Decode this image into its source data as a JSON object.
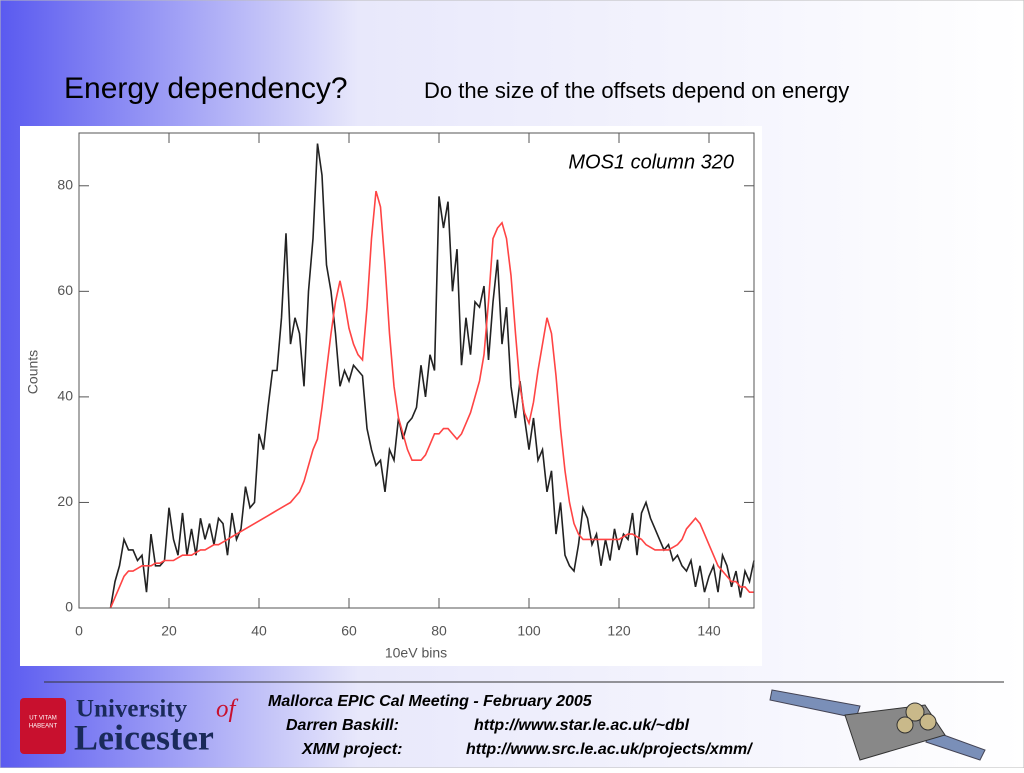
{
  "slide": {
    "title": "Energy dependency?",
    "subtitle": "Do the size of the offsets depend on energy"
  },
  "chart_data": {
    "type": "line",
    "annotation": "MOS1 column 320",
    "xlabel": "10eV bins",
    "ylabel": "Counts",
    "xlim": [
      0,
      150
    ],
    "ylim": [
      0,
      90
    ],
    "xticks": [
      0,
      20,
      40,
      60,
      80,
      100,
      120,
      140
    ],
    "yticks": [
      0,
      20,
      40,
      60,
      80
    ],
    "x": [
      7,
      8,
      9,
      10,
      11,
      12,
      13,
      14,
      15,
      16,
      17,
      18,
      19,
      20,
      21,
      22,
      23,
      24,
      25,
      26,
      27,
      28,
      29,
      30,
      31,
      32,
      33,
      34,
      35,
      36,
      37,
      38,
      39,
      40,
      41,
      42,
      43,
      44,
      45,
      46,
      47,
      48,
      49,
      50,
      51,
      52,
      53,
      54,
      55,
      56,
      57,
      58,
      59,
      60,
      61,
      62,
      63,
      64,
      65,
      66,
      67,
      68,
      69,
      70,
      71,
      72,
      73,
      74,
      75,
      76,
      77,
      78,
      79,
      80,
      81,
      82,
      83,
      84,
      85,
      86,
      87,
      88,
      89,
      90,
      91,
      92,
      93,
      94,
      95,
      96,
      97,
      98,
      99,
      100,
      101,
      102,
      103,
      104,
      105,
      106,
      107,
      108,
      109,
      110,
      111,
      112,
      113,
      114,
      115,
      116,
      117,
      118,
      119,
      120,
      121,
      122,
      123,
      124,
      125,
      126,
      127,
      128,
      129,
      130,
      131,
      132,
      133,
      134,
      135,
      136,
      137,
      138,
      139,
      140,
      141,
      142,
      143,
      144,
      145,
      146,
      147,
      148,
      149,
      150
    ],
    "series": [
      {
        "color": "#222222",
        "values": [
          0,
          5,
          8,
          13,
          11,
          11,
          9,
          10,
          3,
          14,
          8,
          8,
          9,
          19,
          13,
          10,
          18,
          10,
          15,
          10,
          17,
          13,
          16,
          12,
          17,
          16,
          10,
          18,
          13,
          15,
          23,
          19,
          20,
          33,
          30,
          38,
          45,
          45,
          55,
          71,
          50,
          55,
          52,
          42,
          60,
          70,
          88,
          82,
          65,
          60,
          52,
          42,
          45,
          43,
          46,
          45,
          44,
          34,
          30,
          27,
          28,
          22,
          30,
          28,
          36,
          32,
          35,
          36,
          38,
          46,
          40,
          48,
          45,
          78,
          72,
          77,
          60,
          68,
          46,
          55,
          48,
          58,
          57,
          61,
          47,
          58,
          66,
          50,
          57,
          42,
          36,
          43,
          36,
          30,
          36,
          28,
          30,
          22,
          26,
          14,
          20,
          10,
          8,
          7,
          12,
          19,
          17,
          12,
          14,
          8,
          13,
          9,
          15,
          11,
          14,
          13,
          18,
          10,
          18,
          20,
          17,
          15,
          13,
          11,
          12,
          9,
          10,
          8,
          7,
          9,
          4,
          8,
          3,
          6,
          8,
          3,
          10,
          8,
          4,
          7,
          2,
          7,
          5,
          9
        ]
      },
      {
        "color": "#ff4444",
        "values": [
          0,
          2,
          4,
          6,
          7,
          7,
          7.5,
          8,
          8,
          8,
          8.5,
          8.5,
          9,
          9,
          9,
          9.5,
          10,
          10,
          10,
          10.5,
          11,
          11,
          11.5,
          12,
          12,
          12.5,
          13,
          13.5,
          14,
          14.5,
          15,
          15.5,
          16,
          16.5,
          17,
          17.5,
          18,
          18.5,
          19,
          19.5,
          20,
          21,
          22,
          24,
          27,
          30,
          32,
          38,
          45,
          52,
          58,
          62,
          58,
          53,
          50,
          48,
          47,
          57,
          70,
          79,
          76,
          65,
          52,
          42,
          36,
          33,
          30,
          28,
          28,
          28,
          29,
          31,
          33,
          33,
          34,
          34,
          33,
          32,
          33,
          35,
          37,
          40,
          43,
          48,
          58,
          70,
          72,
          73,
          70,
          63,
          52,
          42,
          37,
          35,
          39,
          45,
          50,
          55,
          52,
          44,
          34,
          26,
          20,
          16,
          14,
          13,
          13,
          13,
          13,
          13,
          13,
          13,
          13,
          13,
          13.5,
          14,
          14,
          13.5,
          13,
          12,
          11.5,
          11,
          11,
          11,
          11,
          11.5,
          12,
          13,
          15,
          16,
          17,
          16,
          14,
          12,
          10,
          8,
          7,
          6,
          5,
          5,
          4,
          4,
          3,
          3
        ]
      }
    ]
  },
  "footer": {
    "logo_top": "University",
    "logo_of": "of",
    "logo_bottom": "Leicester",
    "motto_1": "UT VITAM",
    "motto_2": "HABEANT",
    "meeting": "Mallorca EPIC Cal Meeting - February 2005",
    "name_label": "Darren Baskill:",
    "name_url": "http://www.star.le.ac.uk/~dbl",
    "project_label": "XMM project:",
    "project_url": "http://www.src.le.ac.uk/projects/xmm/"
  }
}
